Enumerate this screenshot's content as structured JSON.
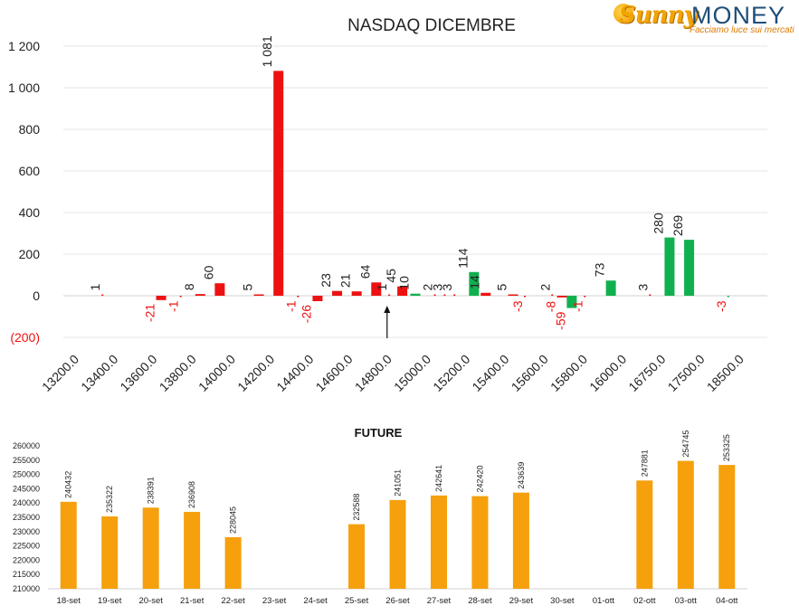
{
  "brand": {
    "word1": "Sunny",
    "word2": "MONEY",
    "tagline": "Facciamo luce sui mercati",
    "sun_icon": "sun-icon"
  },
  "colors": {
    "red": "#ee1111",
    "green": "#11b04f",
    "orange": "#f5a00c",
    "grid": "#e4e4e4",
    "brand_orange": "#f2a400",
    "brand_blue": "#1f4e79"
  },
  "chart_data": [
    {
      "type": "bar",
      "title": "NASDAQ DICEMBRE",
      "xlabel": "",
      "ylabel": "",
      "ylim": [
        -200,
        1200
      ],
      "y_ticks": [
        "(200)",
        "0",
        "200",
        "400",
        "600",
        "800",
        "1 000",
        "1 200"
      ],
      "y_tick_values": [
        -200,
        0,
        200,
        400,
        600,
        800,
        1000,
        1200
      ],
      "categories": [
        "13200.0",
        "13400.0",
        "13600.0",
        "13800.0",
        "14000.0",
        "14200.0",
        "14400.0",
        "14600.0",
        "14800.0",
        "15000.0",
        "15200.0",
        "15400.0",
        "15600.0",
        "15800.0",
        "16000.0",
        "16750.0",
        "17500.0",
        "18500.0"
      ],
      "grid": true,
      "legend": "none",
      "annotations": [
        {
          "type": "arrow",
          "direction": "up",
          "at": "14800.0"
        }
      ],
      "bars": [
        {
          "slot": 1.0,
          "series": "call",
          "value": 1,
          "label": "1"
        },
        {
          "slot": 2.5,
          "series": "put",
          "value": -21,
          "label": "-21"
        },
        {
          "slot": 3.0,
          "series": "put",
          "value": -1,
          "label": "-1"
        },
        {
          "slot": 3.5,
          "series": "call",
          "value": 8,
          "label": "8"
        },
        {
          "slot": 4.0,
          "series": "call",
          "value": 60,
          "label": "60"
        },
        {
          "slot": 5.0,
          "series": "call",
          "value": 5,
          "label": "5"
        },
        {
          "slot": 5.5,
          "series": "call",
          "value": 1081,
          "label": "1 081"
        },
        {
          "slot": 6.0,
          "series": "put",
          "value": -1,
          "label": "-1"
        },
        {
          "slot": 6.5,
          "series": "put",
          "value": -26,
          "label": "-26"
        },
        {
          "slot": 7.0,
          "series": "call",
          "value": 23,
          "label": "23"
        },
        {
          "slot": 7.5,
          "series": "call",
          "value": 21,
          "label": "21"
        },
        {
          "slot": 8.0,
          "series": "call",
          "value": 64,
          "label": "64"
        },
        {
          "slot": 8.333,
          "series": "call",
          "value": 1,
          "label": "1"
        },
        {
          "slot": 8.667,
          "series": "call",
          "value": 45,
          "label": "45"
        },
        {
          "slot": 9.0,
          "series": "green",
          "value": 10,
          "label": "10"
        },
        {
          "slot": 9.5,
          "series": "call",
          "value": 2,
          "label": "2"
        },
        {
          "slot": 9.75,
          "series": "call",
          "value": 3,
          "label": "3"
        },
        {
          "slot": 10.0,
          "series": "call",
          "value": 3,
          "label": "3"
        },
        {
          "slot": 10.5,
          "series": "green",
          "value": 114,
          "label": "114"
        },
        {
          "slot": 10.8,
          "series": "call",
          "value": 14,
          "label": "14"
        },
        {
          "slot": 11.5,
          "series": "call",
          "value": 5,
          "label": "5"
        },
        {
          "slot": 11.8,
          "series": "put",
          "value": -3,
          "label": "-3"
        },
        {
          "slot": 12.5,
          "series": "call",
          "value": 2,
          "label": "2"
        },
        {
          "slot": 12.75,
          "series": "put",
          "value": -8,
          "label": "-8"
        },
        {
          "slot": 13.0,
          "series": "green",
          "value": -59,
          "label": "-59"
        },
        {
          "slot": 13.333,
          "series": "put",
          "value": -1,
          "label": "-1"
        },
        {
          "slot": 14.0,
          "series": "green",
          "value": 73,
          "label": "73"
        },
        {
          "slot": 15.0,
          "series": "call",
          "value": 3,
          "label": "3"
        },
        {
          "slot": 15.5,
          "series": "green",
          "value": 280,
          "label": "280"
        },
        {
          "slot": 16.0,
          "series": "green",
          "value": 269,
          "label": "269"
        },
        {
          "slot": 17.0,
          "series": "green",
          "value": -3,
          "label": "-3"
        }
      ]
    },
    {
      "type": "bar",
      "title": "FUTURE",
      "xlabel": "",
      "ylabel": "",
      "ylim": [
        210000,
        260000
      ],
      "y_ticks": [
        "210000",
        "215000",
        "220000",
        "225000",
        "230000",
        "235000",
        "240000",
        "245000",
        "250000",
        "255000",
        "260000"
      ],
      "grid": false,
      "legend": "none",
      "categories": [
        "18-set",
        "19-set",
        "20-set",
        "21-set",
        "22-set",
        "23-set",
        "24-set",
        "25-set",
        "26-set",
        "27-set",
        "28-set",
        "29-set",
        "30-set",
        "01-ott",
        "02-ott",
        "03-ott",
        "04-ott"
      ],
      "values": [
        240432,
        235322,
        238391,
        236908,
        228045,
        null,
        null,
        232588,
        241051,
        242641,
        242420,
        243639,
        null,
        null,
        247881,
        254745,
        253325
      ],
      "labels": [
        "240432",
        "235322",
        "238391",
        "236908",
        "228045",
        "",
        "",
        "232588",
        "241051",
        "242641",
        "242420",
        "243639",
        "",
        "",
        "247881",
        "254745",
        "253325"
      ]
    }
  ]
}
